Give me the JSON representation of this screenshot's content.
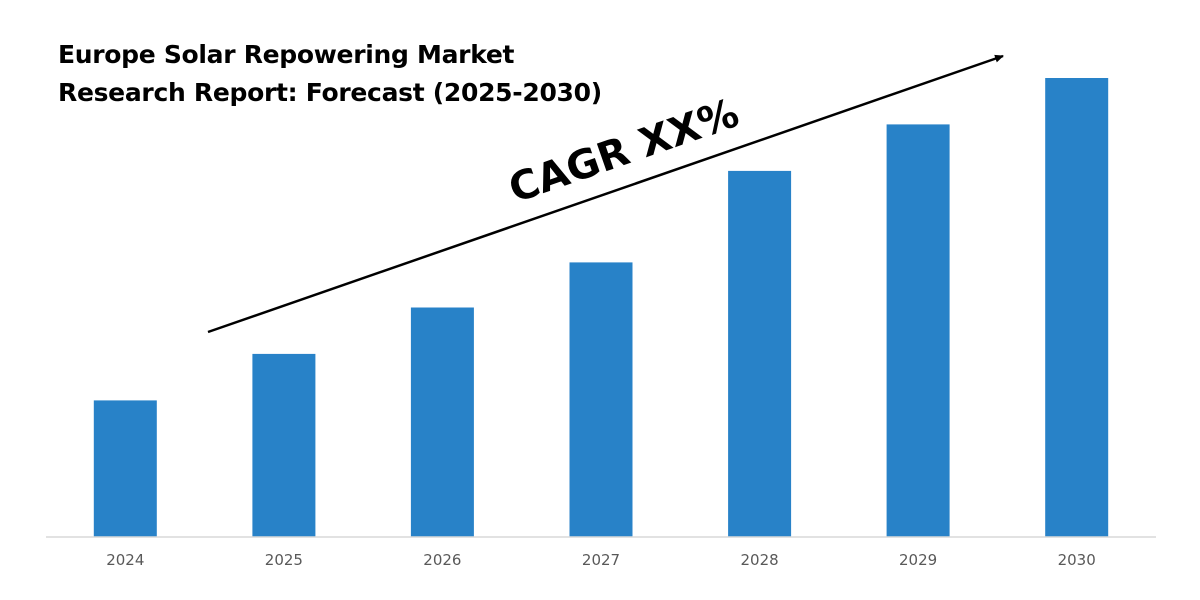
{
  "chart_data": {
    "type": "bar",
    "title_lines": [
      "Europe Solar Repowering Market",
      "Research Report: Forecast (2025-2030)"
    ],
    "categories": [
      "2024",
      "2025",
      "2026",
      "2027",
      "2028",
      "2029",
      "2030"
    ],
    "values": [
      1.0,
      1.34,
      1.68,
      2.01,
      2.68,
      3.02,
      3.36
    ],
    "annotation": "CAGR XX%",
    "trend_arrow": true,
    "ylim": [
      0,
      3.36
    ],
    "grid": false,
    "legend": "none",
    "y_axis_labels_shown": false,
    "colors": {
      "bar": "#2882c8",
      "axis": "#d9d9d9",
      "tick_text": "#595959",
      "text": "#000000"
    }
  }
}
